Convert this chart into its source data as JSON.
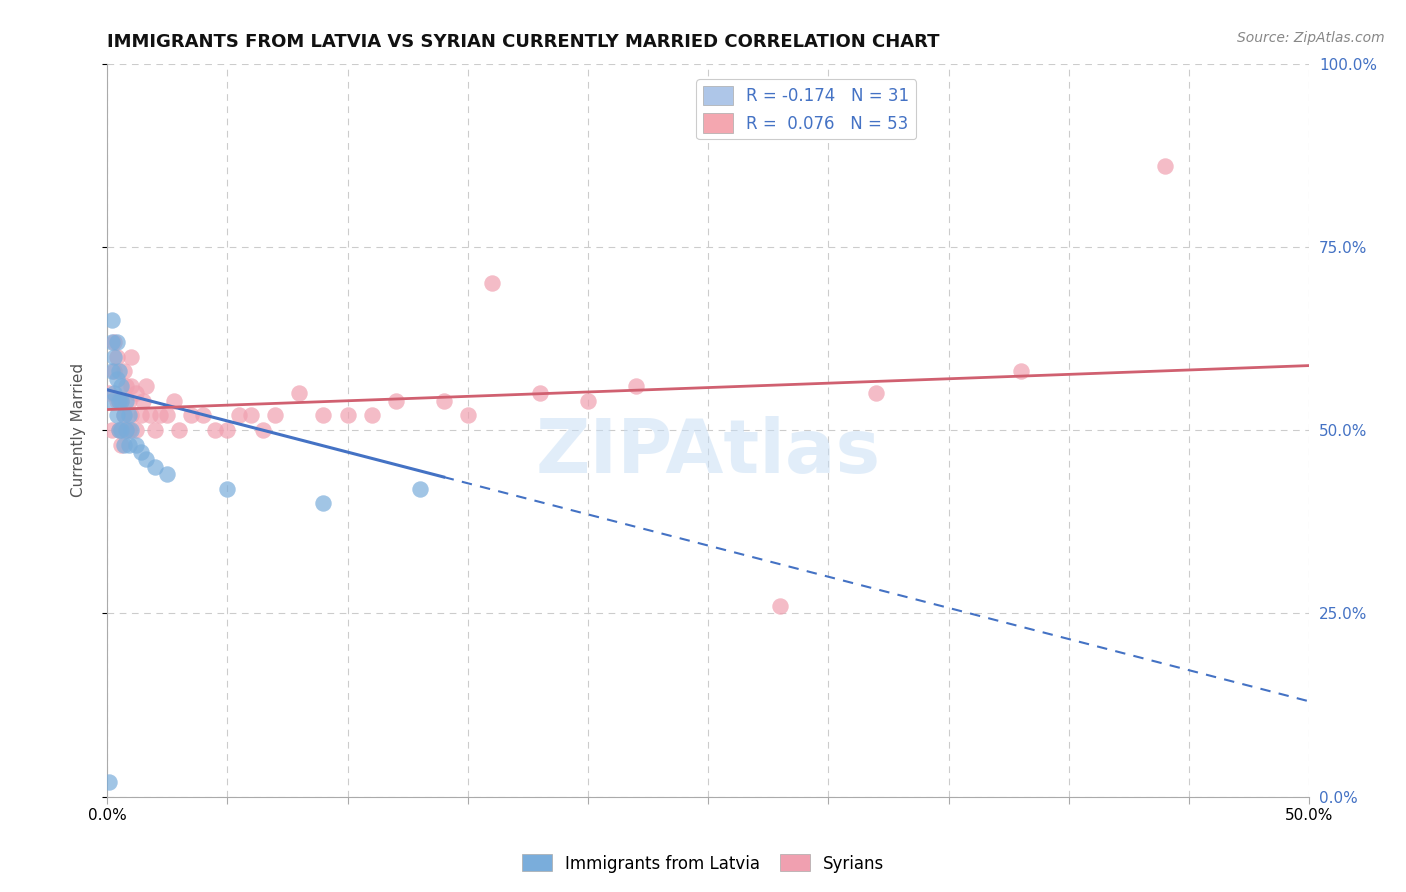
{
  "title": "IMMIGRANTS FROM LATVIA VS SYRIAN CURRENTLY MARRIED CORRELATION CHART",
  "source_text": "Source: ZipAtlas.com",
  "ylabel": "Currently Married",
  "xlim": [
    0.0,
    0.5
  ],
  "ylim": [
    0.0,
    1.0
  ],
  "ytick_labels_right": [
    "0.0%",
    "25.0%",
    "50.0%",
    "75.0%",
    "100.0%"
  ],
  "ytick_positions_right": [
    0.0,
    0.25,
    0.5,
    0.75,
    1.0
  ],
  "legend_entries": [
    {
      "label": "Immigrants from Latvia",
      "color": "#aec6e8",
      "R": -0.174,
      "N": 31
    },
    {
      "label": "Syrians",
      "color": "#f4a7b0",
      "R": 0.076,
      "N": 53
    }
  ],
  "watermark": "ZIPAtlas",
  "latvia_x": [
    0.002,
    0.002,
    0.002,
    0.002,
    0.003,
    0.003,
    0.004,
    0.004,
    0.004,
    0.005,
    0.005,
    0.005,
    0.006,
    0.006,
    0.006,
    0.007,
    0.007,
    0.008,
    0.008,
    0.009,
    0.009,
    0.01,
    0.012,
    0.014,
    0.016,
    0.02,
    0.025,
    0.05,
    0.09,
    0.13,
    0.001
  ],
  "latvia_y": [
    0.54,
    0.58,
    0.62,
    0.65,
    0.55,
    0.6,
    0.52,
    0.57,
    0.62,
    0.5,
    0.54,
    0.58,
    0.5,
    0.54,
    0.56,
    0.48,
    0.52,
    0.5,
    0.54,
    0.48,
    0.52,
    0.5,
    0.48,
    0.47,
    0.46,
    0.45,
    0.44,
    0.42,
    0.4,
    0.42,
    0.02
  ],
  "syrian_x": [
    0.001,
    0.002,
    0.003,
    0.003,
    0.004,
    0.004,
    0.005,
    0.005,
    0.006,
    0.006,
    0.007,
    0.007,
    0.008,
    0.008,
    0.009,
    0.009,
    0.01,
    0.01,
    0.01,
    0.012,
    0.012,
    0.014,
    0.015,
    0.016,
    0.018,
    0.02,
    0.022,
    0.025,
    0.028,
    0.03,
    0.035,
    0.04,
    0.045,
    0.05,
    0.055,
    0.06,
    0.065,
    0.07,
    0.08,
    0.09,
    0.1,
    0.11,
    0.12,
    0.14,
    0.15,
    0.16,
    0.18,
    0.2,
    0.22,
    0.28,
    0.32,
    0.38,
    0.44
  ],
  "syrian_y": [
    0.55,
    0.5,
    0.58,
    0.62,
    0.54,
    0.6,
    0.5,
    0.54,
    0.48,
    0.54,
    0.52,
    0.58,
    0.5,
    0.56,
    0.5,
    0.54,
    0.52,
    0.56,
    0.6,
    0.5,
    0.55,
    0.52,
    0.54,
    0.56,
    0.52,
    0.5,
    0.52,
    0.52,
    0.54,
    0.5,
    0.52,
    0.52,
    0.5,
    0.5,
    0.52,
    0.52,
    0.5,
    0.52,
    0.55,
    0.52,
    0.52,
    0.52,
    0.54,
    0.54,
    0.52,
    0.7,
    0.55,
    0.54,
    0.56,
    0.26,
    0.55,
    0.58,
    0.86
  ],
  "latvia_color": "#7aaddb",
  "syrian_color": "#f0a0b0",
  "latvia_line_color": "#4472c4",
  "syrian_line_color": "#d06070",
  "latvia_trend_x0": 0.0,
  "latvia_trend_x_solid_end": 0.14,
  "latvia_trend_x_dash_end": 0.5,
  "latvia_trend_y0": 0.555,
  "latvia_trend_slope": -0.85,
  "syrian_trend_y0": 0.528,
  "syrian_trend_slope": 0.12,
  "background_color": "#ffffff",
  "grid_color": "#cccccc",
  "title_color": "#111111",
  "right_axis_color": "#4472c4",
  "title_fontsize": 13,
  "axis_label_fontsize": 11,
  "tick_fontsize": 11,
  "legend_fontsize": 12,
  "source_fontsize": 10
}
